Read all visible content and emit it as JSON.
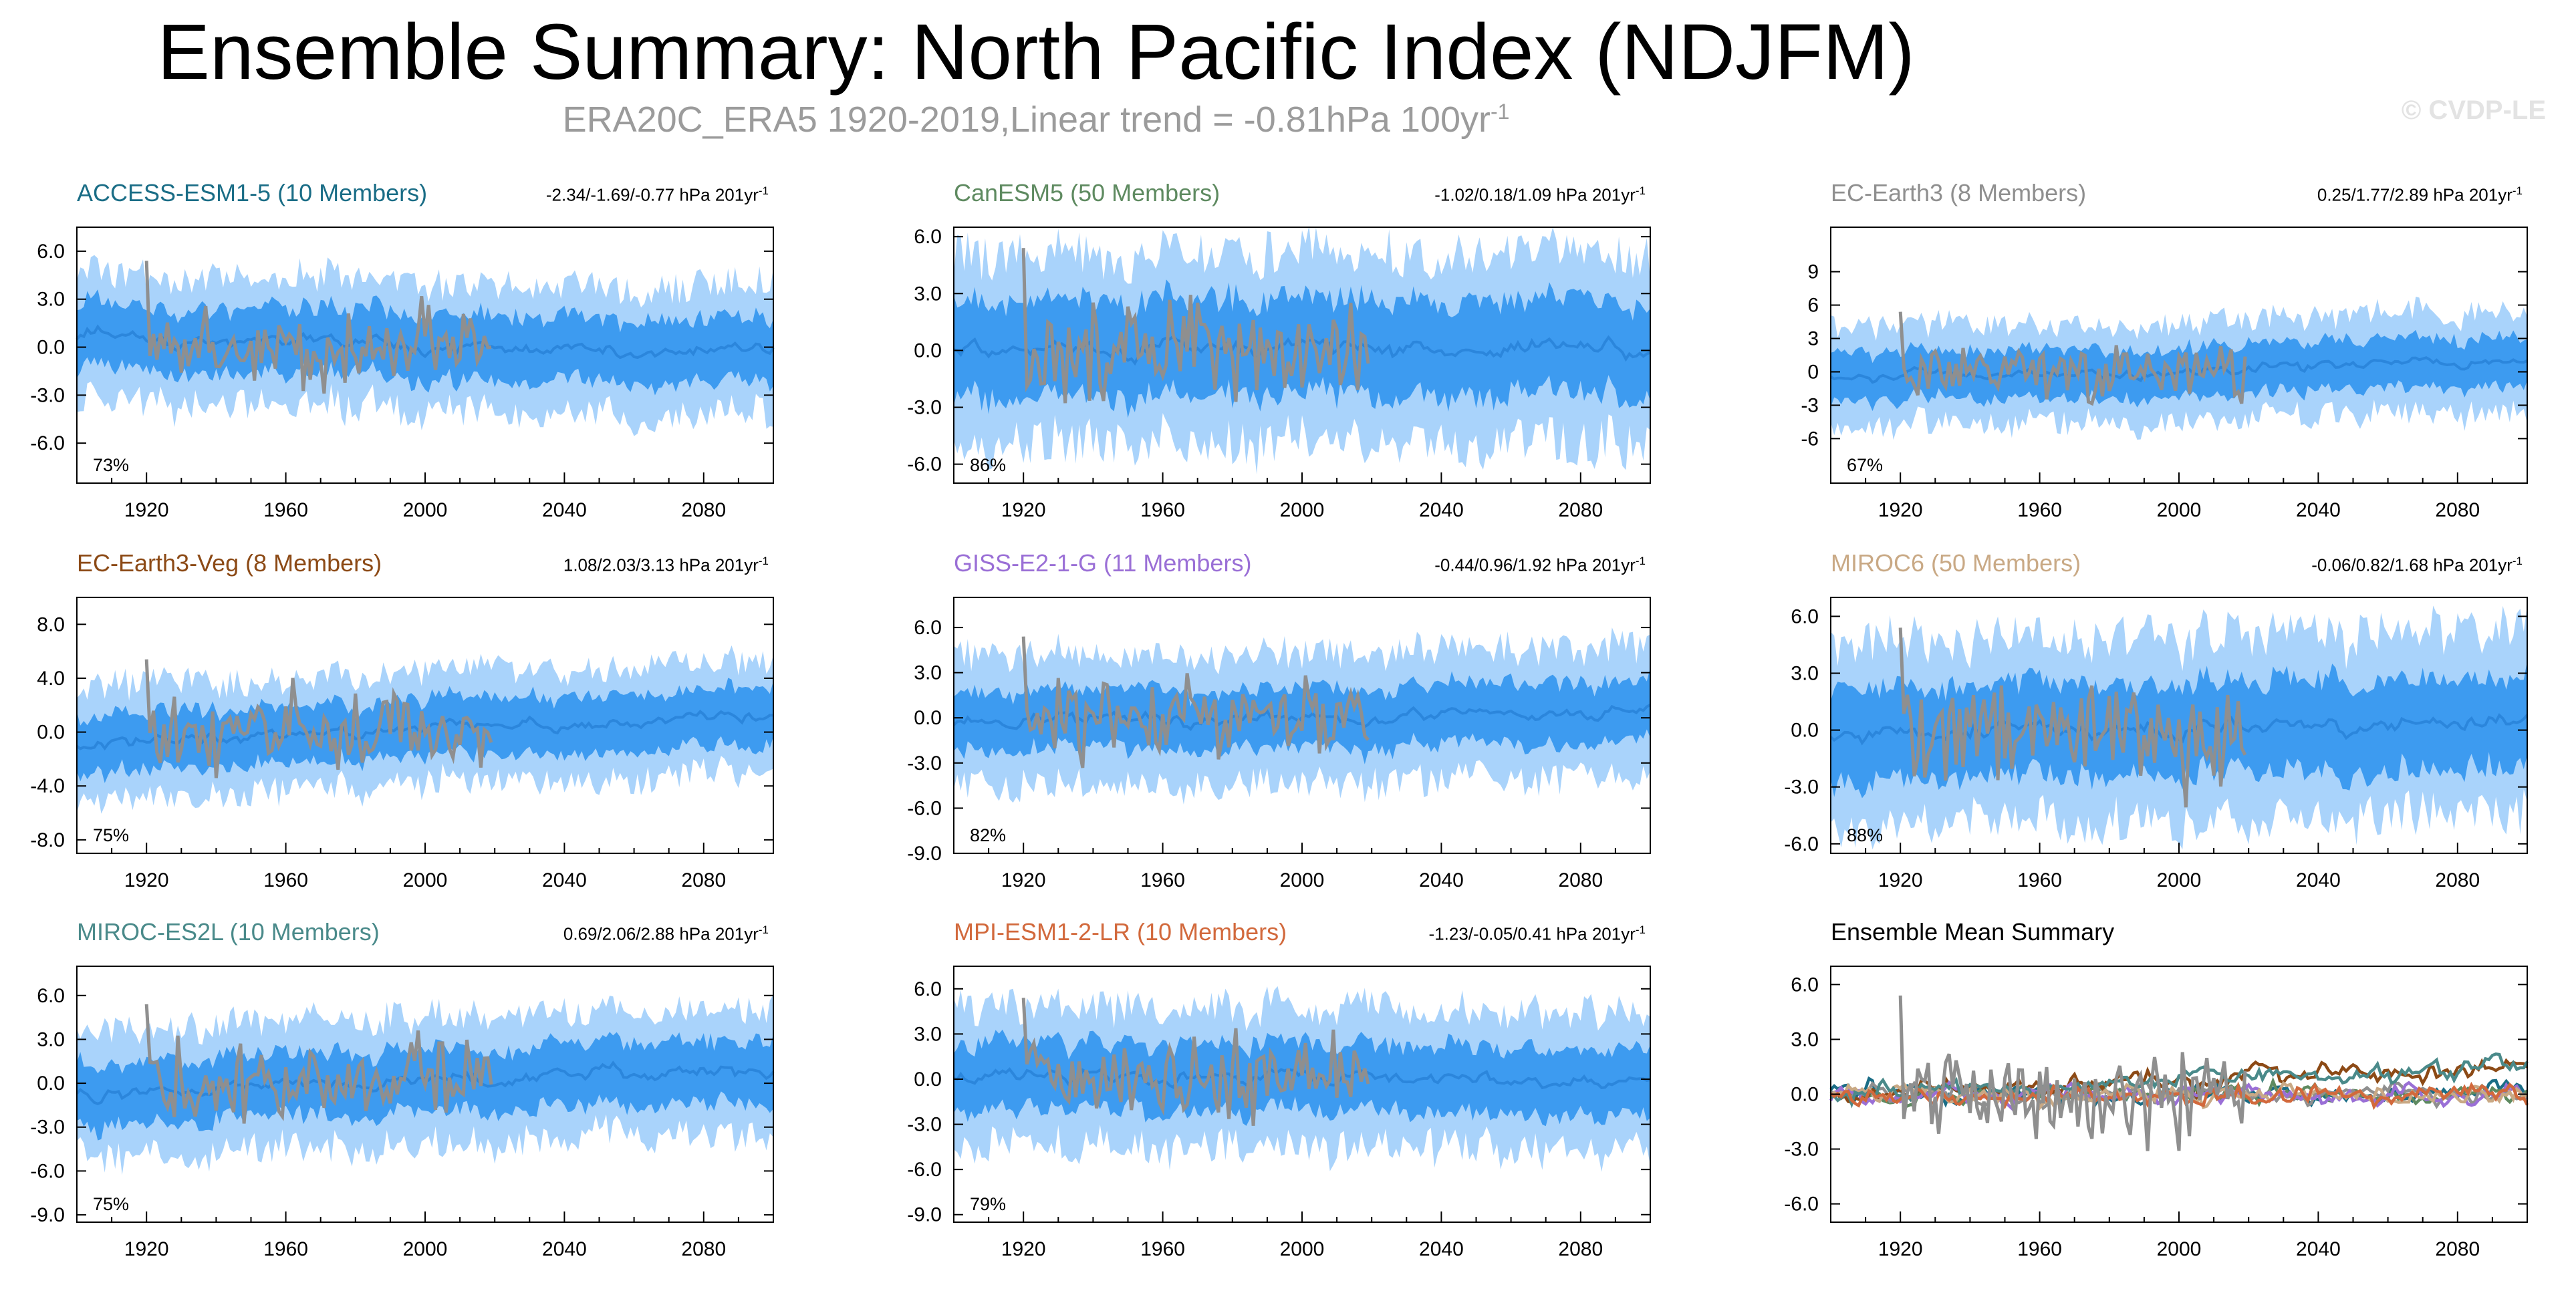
{
  "title": "Ensemble Summary: North Pacific Index (NDJFM)",
  "subtitle_main": "ERA20C_ERA5 1920-2019,Linear trend = -0.81hPa 100yr",
  "subtitle_exp": "-1",
  "copyright": "© CVDP-LE",
  "colors": {
    "band_outer": "#a9d3fb",
    "band_inner": "#3d9bf0",
    "mean_line": "#2b86dc",
    "obs_line": "#8f8f8f",
    "axis": "#000000"
  },
  "chart_data": [
    {
      "type": "area",
      "title": "ACCESS-ESM1-5 (10 Members)",
      "title_color": "#1a6d86",
      "trend_text": "-2.34/-1.69/-0.77 hPa 201yr",
      "trend_exp": "-1",
      "percent_label": "73%",
      "xlim": [
        1900,
        2100
      ],
      "ylim": [
        -8.5,
        7.5
      ],
      "yticks": [
        6.0,
        3.0,
        0.0,
        -3.0,
        -6.0
      ],
      "ytick_labels": [
        "6.0",
        "3.0",
        "0.0",
        "-3.0",
        "-6.0"
      ],
      "xticks": [
        1920,
        1960,
        2000,
        2040,
        2080
      ],
      "xtick_labels": [
        "1920",
        "1960",
        "2000",
        "2040",
        "2080"
      ],
      "outer_halfwidth": 4.0,
      "inner_halfwidth": 2.0,
      "mean_trend": [
        0.5,
        -0.4
      ],
      "seed": 11
    },
    {
      "type": "area",
      "title": "CanESM5 (50 Members)",
      "title_color": "#5e8a60",
      "trend_text": "-1.02/0.18/1.09 hPa 201yr",
      "trend_exp": "-1",
      "percent_label": "86%",
      "xlim": [
        1900,
        2100
      ],
      "ylim": [
        -7.0,
        6.5
      ],
      "yticks": [
        6.0,
        3.0,
        0.0,
        -3.0,
        -6.0
      ],
      "ytick_labels": [
        "6.0",
        "3.0",
        "0.0",
        "-3.0",
        "-6.0"
      ],
      "xticks": [
        1920,
        1960,
        2000,
        2040,
        2080
      ],
      "xtick_labels": [
        "1920",
        "1960",
        "2000",
        "2040",
        "2080"
      ],
      "outer_halfwidth": 5.0,
      "inner_halfwidth": 2.5,
      "mean_trend": [
        0.0,
        0.1
      ],
      "seed": 23
    },
    {
      "type": "area",
      "title": "EC-Earth3 (8 Members)",
      "title_color": "#8f8f8f",
      "trend_text": "0.25/1.77/2.89 hPa 201yr",
      "trend_exp": "-1",
      "percent_label": "67%",
      "xlim": [
        1900,
        2100
      ],
      "ylim": [
        -10,
        13
      ],
      "yticks": [
        9,
        6,
        3,
        0,
        -3,
        -6
      ],
      "ytick_labels": [
        "9",
        "6",
        "3",
        "0",
        "-3",
        "-6"
      ],
      "xticks": [
        1920,
        1960,
        2000,
        2040,
        2080
      ],
      "xtick_labels": [
        "1920",
        "1960",
        "2000",
        "2040",
        "2080"
      ],
      "outer_halfwidth": 4.5,
      "inner_halfwidth": 2.2,
      "mean_trend": [
        -0.6,
        1.0
      ],
      "seed": 37
    },
    {
      "type": "area",
      "title": "EC-Earth3-Veg (8 Members)",
      "title_color": "#8c4a16",
      "trend_text": "1.08/2.03/3.13 hPa 201yr",
      "trend_exp": "-1",
      "percent_label": "75%",
      "xlim": [
        1900,
        2100
      ],
      "ylim": [
        -9.0,
        10.0
      ],
      "yticks": [
        8.0,
        4.0,
        0.0,
        -4.0,
        -8.0
      ],
      "ytick_labels": [
        "8.0",
        "4.0",
        "0.0",
        "-4.0",
        "-8.0"
      ],
      "xticks": [
        1920,
        1960,
        2000,
        2040,
        2080
      ],
      "xtick_labels": [
        "1920",
        "1960",
        "2000",
        "2040",
        "2080"
      ],
      "outer_halfwidth": 4.2,
      "inner_halfwidth": 2.1,
      "mean_trend": [
        -0.8,
        1.2
      ],
      "seed": 41
    },
    {
      "type": "area",
      "title": "GISS-E2-1-G (11 Members)",
      "title_color": "#9a6fd6",
      "trend_text": "-0.44/0.96/1.92 hPa 201yr",
      "trend_exp": "-1",
      "percent_label": "82%",
      "xlim": [
        1900,
        2100
      ],
      "ylim": [
        -9.0,
        8.0
      ],
      "yticks": [
        6.0,
        3.0,
        0.0,
        -3.0,
        -6.0,
        -9.0
      ],
      "ytick_labels": [
        "6.0",
        "3.0",
        "0.0",
        "-3.0",
        "-6.0",
        "-9.0"
      ],
      "xticks": [
        1920,
        1960,
        2000,
        2040,
        2080
      ],
      "xtick_labels": [
        "1920",
        "1960",
        "2000",
        "2040",
        "2080"
      ],
      "outer_halfwidth": 4.3,
      "inner_halfwidth": 2.0,
      "mean_trend": [
        -0.3,
        0.6
      ],
      "seed": 53
    },
    {
      "type": "area",
      "title": "MIROC6 (50 Members)",
      "title_color": "#c9a985",
      "trend_text": "-0.06/0.82/1.68 hPa 201yr",
      "trend_exp": "-1",
      "percent_label": "88%",
      "xlim": [
        1900,
        2100
      ],
      "ylim": [
        -6.5,
        7.0
      ],
      "yticks": [
        6.0,
        3.0,
        0.0,
        -3.0,
        -6.0
      ],
      "ytick_labels": [
        "6.0",
        "3.0",
        "0.0",
        "-3.0",
        "-6.0"
      ],
      "xticks": [
        1920,
        1960,
        2000,
        2040,
        2080
      ],
      "xtick_labels": [
        "1920",
        "1960",
        "2000",
        "2040",
        "2080"
      ],
      "outer_halfwidth": 4.8,
      "inner_halfwidth": 2.4,
      "mean_trend": [
        -0.3,
        0.4
      ],
      "seed": 67
    },
    {
      "type": "area",
      "title": "MIROC-ES2L (10 Members)",
      "title_color": "#4a8a8a",
      "trend_text": "0.69/2.06/2.88 hPa 201yr",
      "trend_exp": "-1",
      "percent_label": "75%",
      "xlim": [
        1900,
        2100
      ],
      "ylim": [
        -9.5,
        8.0
      ],
      "yticks": [
        6.0,
        3.0,
        0.0,
        -3.0,
        -6.0,
        -9.0
      ],
      "ytick_labels": [
        "6.0",
        "3.0",
        "0.0",
        "-3.0",
        "-6.0",
        "-9.0"
      ],
      "xticks": [
        1920,
        1960,
        2000,
        2040,
        2080
      ],
      "xtick_labels": [
        "1920",
        "1960",
        "2000",
        "2040",
        "2080"
      ],
      "outer_halfwidth": 4.3,
      "inner_halfwidth": 2.1,
      "mean_trend": [
        -0.7,
        1.0
      ],
      "seed": 79
    },
    {
      "type": "area",
      "title": "MPI-ESM1-2-LR (10 Members)",
      "title_color": "#d2693c",
      "trend_text": "-1.23/-0.05/0.41 hPa 201yr",
      "trend_exp": "-1",
      "percent_label": "79%",
      "xlim": [
        1900,
        2100
      ],
      "ylim": [
        -9.5,
        7.5
      ],
      "yticks": [
        6.0,
        3.0,
        0.0,
        -3.0,
        -6.0,
        -9.0
      ],
      "ytick_labels": [
        "6.0",
        "3.0",
        "0.0",
        "-3.0",
        "-6.0",
        "-9.0"
      ],
      "xticks": [
        1920,
        1960,
        2000,
        2040,
        2080
      ],
      "xtick_labels": [
        "1920",
        "1960",
        "2000",
        "2040",
        "2080"
      ],
      "outer_halfwidth": 4.6,
      "inner_halfwidth": 2.2,
      "mean_trend": [
        0.2,
        -0.1
      ],
      "seed": 83
    },
    {
      "type": "line",
      "title": "Ensemble Mean Summary",
      "title_color": "#000000",
      "xlim": [
        1900,
        2100
      ],
      "ylim": [
        -7.0,
        7.0
      ],
      "yticks": [
        6.0,
        3.0,
        0.0,
        -3.0,
        -6.0
      ],
      "ytick_labels": [
        "6.0",
        "3.0",
        "0.0",
        "-3.0",
        "-6.0"
      ],
      "xticks": [
        1920,
        1960,
        2000,
        2040,
        2080
      ],
      "xtick_labels": [
        "1920",
        "1960",
        "2000",
        "2040",
        "2080"
      ],
      "series_colors": [
        "#1a6d86",
        "#5e8a60",
        "#8f8f8f",
        "#8c4a16",
        "#9a6fd6",
        "#c9a985",
        "#4a8a8a",
        "#d2693c"
      ],
      "seed": 97
    }
  ],
  "observed": {
    "label": "ERA20C_ERA5 1920-2019",
    "years": [
      1920,
      2019
    ]
  }
}
